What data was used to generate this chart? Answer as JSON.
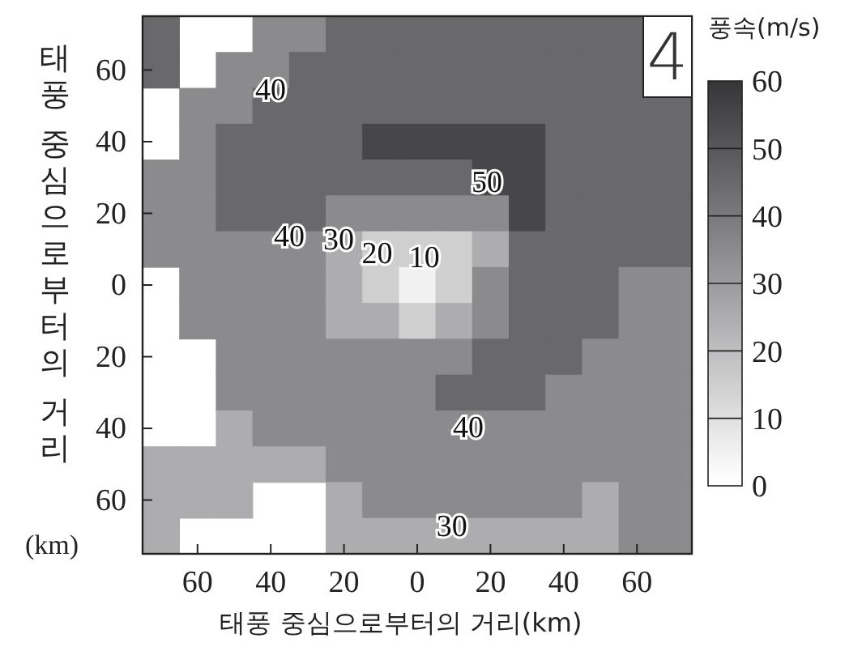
{
  "chart_data": {
    "type": "heatmap",
    "xlabel": "태풍 중심으로부터의 거리(km)",
    "ylabel": "태풍 중심으로부터의 거리(km)",
    "clabel": "풍속(m/s)",
    "categories": [
      null,
      "60",
      null,
      "40",
      null,
      "20",
      null,
      "0",
      null,
      "20",
      null,
      "40",
      null,
      "60",
      null
    ],
    "y_categories": [
      null,
      "60",
      null,
      "40",
      null,
      "20",
      null,
      "0",
      null,
      "20",
      null,
      "40",
      null,
      "60",
      null
    ],
    "clim": [
      0,
      60
    ],
    "cticks": [
      0,
      10,
      20,
      30,
      40,
      50,
      60
    ],
    "cells": [
      [
        45,
        null,
        null,
        35,
        35,
        45,
        45,
        45,
        45,
        45,
        45,
        45,
        45,
        45,
        null
      ],
      [
        45,
        null,
        35,
        35,
        45,
        45,
        45,
        45,
        45,
        45,
        45,
        45,
        45,
        45,
        null
      ],
      [
        null,
        35,
        35,
        45,
        45,
        45,
        45,
        45,
        45,
        45,
        45,
        45,
        45,
        45,
        45
      ],
      [
        null,
        35,
        45,
        45,
        45,
        45,
        55,
        55,
        55,
        55,
        55,
        45,
        45,
        45,
        45
      ],
      [
        35,
        35,
        45,
        45,
        45,
        45,
        45,
        45,
        45,
        55,
        55,
        45,
        45,
        45,
        45
      ],
      [
        35,
        35,
        45,
        45,
        45,
        35,
        35,
        35,
        35,
        35,
        55,
        45,
        45,
        45,
        45
      ],
      [
        35,
        35,
        35,
        35,
        35,
        25,
        15,
        15,
        15,
        25,
        45,
        45,
        45,
        45,
        45
      ],
      [
        null,
        35,
        35,
        35,
        35,
        25,
        15,
        5,
        15,
        35,
        45,
        45,
        45,
        35,
        35
      ],
      [
        null,
        35,
        35,
        35,
        35,
        25,
        25,
        15,
        25,
        35,
        45,
        45,
        45,
        35,
        35
      ],
      [
        null,
        null,
        35,
        35,
        35,
        35,
        35,
        35,
        35,
        45,
        45,
        45,
        35,
        35,
        35
      ],
      [
        null,
        null,
        35,
        35,
        35,
        35,
        35,
        35,
        45,
        45,
        45,
        35,
        35,
        35,
        35
      ],
      [
        null,
        null,
        25,
        35,
        35,
        35,
        35,
        35,
        35,
        35,
        35,
        35,
        35,
        35,
        35
      ],
      [
        25,
        25,
        25,
        25,
        25,
        35,
        35,
        35,
        35,
        35,
        35,
        35,
        35,
        35,
        35
      ],
      [
        25,
        25,
        25,
        null,
        null,
        25,
        35,
        35,
        35,
        35,
        35,
        35,
        25,
        35,
        35
      ],
      [
        25,
        null,
        null,
        null,
        null,
        25,
        25,
        25,
        25,
        25,
        25,
        25,
        25,
        35,
        35
      ]
    ],
    "grid": false,
    "annotations": [
      "4",
      "40",
      "50",
      "40",
      "30",
      "20",
      "10",
      "40",
      "30"
    ]
  }
}
